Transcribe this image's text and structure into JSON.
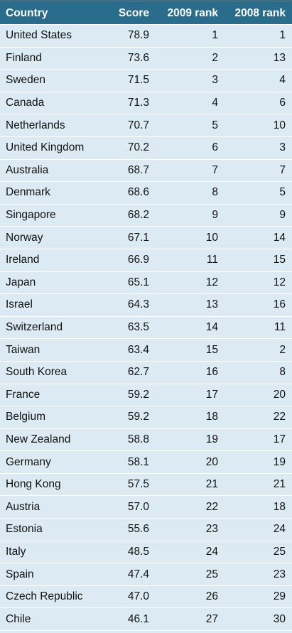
{
  "chart_data": {
    "type": "table",
    "columns": [
      "Country",
      "Score",
      "2009 rank",
      "2008 rank"
    ],
    "rows": [
      [
        "United States",
        "78.9",
        "1",
        "1"
      ],
      [
        "Finland",
        "73.6",
        "2",
        "13"
      ],
      [
        "Sweden",
        "71.5",
        "3",
        "4"
      ],
      [
        "Canada",
        "71.3",
        "4",
        "6"
      ],
      [
        "Netherlands",
        "70.7",
        "5",
        "10"
      ],
      [
        "United Kingdom",
        "70.2",
        "6",
        "3"
      ],
      [
        "Australia",
        "68.7",
        "7",
        "7"
      ],
      [
        "Denmark",
        "68.6",
        "8",
        "5"
      ],
      [
        "Singapore",
        "68.2",
        "9",
        "9"
      ],
      [
        "Norway",
        "67.1",
        "10",
        "14"
      ],
      [
        "Ireland",
        "66.9",
        "11",
        "15"
      ],
      [
        "Japan",
        "65.1",
        "12",
        "12"
      ],
      [
        "Israel",
        "64.3",
        "13",
        "16"
      ],
      [
        "Switzerland",
        "63.5",
        "14",
        "11"
      ],
      [
        "Taiwan",
        "63.4",
        "15",
        "2"
      ],
      [
        "South Korea",
        "62.7",
        "16",
        "8"
      ],
      [
        "France",
        "59.2",
        "17",
        "20"
      ],
      [
        "Belgium",
        "59.2",
        "18",
        "22"
      ],
      [
        "New Zealand",
        "58.8",
        "19",
        "17"
      ],
      [
        "Germany",
        "58.1",
        "20",
        "19"
      ],
      [
        "Hong Kong",
        "57.5",
        "21",
        "21"
      ],
      [
        "Austria",
        "57.0",
        "22",
        "18"
      ],
      [
        "Estonia",
        "55.6",
        "23",
        "24"
      ],
      [
        "Italy",
        "48.5",
        "24",
        "25"
      ],
      [
        "Spain",
        "47.4",
        "25",
        "23"
      ],
      [
        "Czech Republic",
        "47.0",
        "26",
        "29"
      ],
      [
        "Chile",
        "46.1",
        "27",
        "30"
      ]
    ],
    "colors": {
      "header_bg": "#2a6c8b",
      "row_bg": "#dcebf3",
      "header_text": "#ffffff",
      "row_text": "#111111"
    }
  }
}
